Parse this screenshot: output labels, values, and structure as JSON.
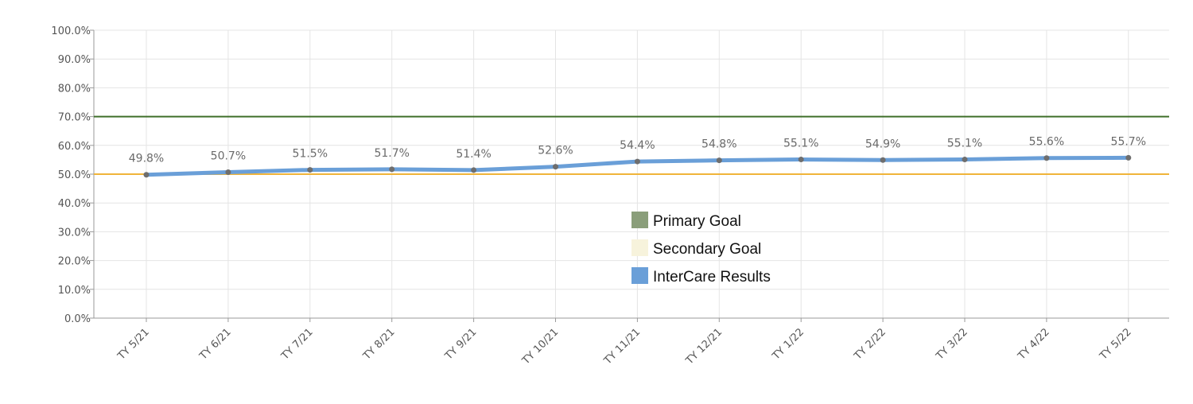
{
  "chart_data": {
    "type": "line",
    "categories": [
      "TY 5/21",
      "TY 6/21",
      "TY 7/21",
      "TY 8/21",
      "TY 9/21",
      "TY 10/21",
      "TY 11/21",
      "TY 12/21",
      "TY 1/22",
      "TY 2/22",
      "TY 3/22",
      "TY 4/22",
      "TY 5/22"
    ],
    "series": [
      {
        "name": "InterCare Results",
        "values": [
          49.8,
          50.7,
          51.5,
          51.7,
          51.4,
          52.6,
          54.4,
          54.8,
          55.1,
          54.9,
          55.1,
          55.6,
          55.7
        ],
        "labels": [
          "49.8%",
          "50.7%",
          "51.5%",
          "51.7%",
          "51.4%",
          "52.6%",
          "54.4%",
          "54.8%",
          "55.1%",
          "54.9%",
          "55.1%",
          "55.6%",
          "55.7%"
        ],
        "color": "#6a9fd8"
      }
    ],
    "goals": [
      {
        "name": "Primary Goal",
        "value": 70,
        "color": "#3f6f2a",
        "legend_color": "#8a9e7a"
      },
      {
        "name": "Secondary Goal",
        "value": 50,
        "color": "#f0b43a",
        "legend_color": "#f7f3dc"
      }
    ],
    "legend": {
      "position": "center-right",
      "items": [
        {
          "label": "Primary Goal",
          "color": "#8a9e7a"
        },
        {
          "label": "Secondary Goal",
          "color": "#f7f3dc"
        },
        {
          "label": "InterCare Results",
          "color": "#6a9fd8"
        }
      ]
    },
    "yticks": [
      "0.0%",
      "10.0%",
      "20.0%",
      "30.0%",
      "40.0%",
      "50.0%",
      "60.0%",
      "70.0%",
      "80.0%",
      "90.0%",
      "100.0%"
    ],
    "ylim": [
      0,
      100
    ],
    "grid": true,
    "title": "",
    "xlabel": "",
    "ylabel": ""
  }
}
